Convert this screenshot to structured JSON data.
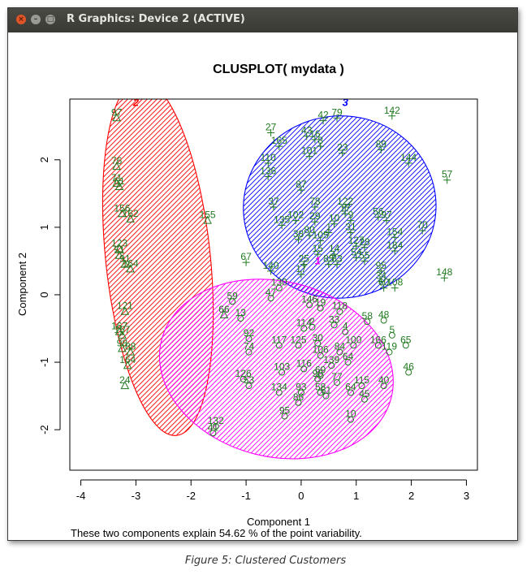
{
  "window": {
    "title": "R Graphics: Device 2 (ACTIVE)",
    "close_glyph": "×",
    "min_glyph": "–",
    "max_glyph": "□"
  },
  "caption": "Figure 5: Clustered Customers",
  "chart_data": {
    "type": "scatter",
    "title": "CLUSPLOT( mydata )",
    "xlabel": "Component 1",
    "ylabel": "Component 2",
    "subtitle": "These two components explain 54.62 % of the point variability.",
    "xlim": [
      -4.2,
      3.2
    ],
    "ylim": [
      -2.6,
      2.9
    ],
    "xticks": [
      -4,
      -3,
      -2,
      -1,
      0,
      1,
      2,
      3
    ],
    "yticks": [
      -2,
      -1,
      0,
      1,
      2
    ],
    "grid": false,
    "clusters": [
      {
        "label": "2",
        "color": "#ff0000",
        "marker": "triangle",
        "label_pos": [
          -3.0,
          2.8
        ],
        "ellipse": {
          "cx": -2.6,
          "cy": 0.55,
          "rx": 0.95,
          "ry": 2.65,
          "angle": -6
        },
        "points": [
          {
            "id": "97",
            "x": -3.35,
            "y": 2.62
          },
          {
            "id": "76",
            "x": -3.35,
            "y": 1.9
          },
          {
            "id": "71",
            "x": -3.35,
            "y": 1.65
          },
          {
            "id": "61",
            "x": -3.3,
            "y": 1.6
          },
          {
            "id": "156",
            "x": -3.25,
            "y": 1.2
          },
          {
            "id": "162",
            "x": -3.1,
            "y": 1.12
          },
          {
            "id": "123",
            "x": -3.3,
            "y": 0.68
          },
          {
            "id": "51",
            "x": -3.3,
            "y": 0.58
          },
          {
            "id": "91",
            "x": -3.2,
            "y": 0.45
          },
          {
            "id": "164",
            "x": -3.1,
            "y": 0.38
          },
          {
            "id": "121",
            "x": -3.2,
            "y": -0.25
          },
          {
            "id": "167",
            "x": -3.3,
            "y": -0.55
          },
          {
            "id": "157",
            "x": -3.25,
            "y": -0.6
          },
          {
            "id": "98",
            "x": -3.25,
            "y": -0.8
          },
          {
            "id": "88",
            "x": -3.1,
            "y": -0.85
          },
          {
            "id": "164",
            "x": -3.15,
            "y": -1.05
          },
          {
            "id": "24",
            "x": -3.2,
            "y": -1.35
          },
          {
            "id": "155",
            "x": -1.7,
            "y": 1.1
          },
          {
            "id": "66",
            "x": -1.4,
            "y": -0.3
          }
        ]
      },
      {
        "label": "3",
        "color": "#0000ff",
        "marker": "cross",
        "label_pos": [
          0.8,
          2.8
        ],
        "ellipse": {
          "cx": 0.7,
          "cy": 1.3,
          "rx": 1.75,
          "ry": 1.35,
          "angle": -6
        },
        "points": [
          {
            "id": "42",
            "x": 0.4,
            "y": 2.58
          },
          {
            "id": "79",
            "x": 0.65,
            "y": 2.62
          },
          {
            "id": "142",
            "x": 1.65,
            "y": 2.65
          },
          {
            "id": "27",
            "x": -0.55,
            "y": 2.4
          },
          {
            "id": "43",
            "x": 0.1,
            "y": 2.35
          },
          {
            "id": "16",
            "x": 0.25,
            "y": 2.3
          },
          {
            "id": "165",
            "x": -0.4,
            "y": 2.2
          },
          {
            "id": "8",
            "x": 0.35,
            "y": 2.2
          },
          {
            "id": "89",
            "x": 1.45,
            "y": 2.15
          },
          {
            "id": "23",
            "x": 0.75,
            "y": 2.1
          },
          {
            "id": "101",
            "x": 0.15,
            "y": 2.05
          },
          {
            "id": "144",
            "x": 1.95,
            "y": 1.95
          },
          {
            "id": "110",
            "x": -0.6,
            "y": 1.95
          },
          {
            "id": "136",
            "x": -0.6,
            "y": 1.75
          },
          {
            "id": "57",
            "x": 2.65,
            "y": 1.7
          },
          {
            "id": "87",
            "x": 0.0,
            "y": 1.55
          },
          {
            "id": "37",
            "x": -0.5,
            "y": 1.3
          },
          {
            "id": "78",
            "x": 0.25,
            "y": 1.3
          },
          {
            "id": "122",
            "x": 0.8,
            "y": 1.3
          },
          {
            "id": "17",
            "x": 0.8,
            "y": 1.2
          },
          {
            "id": "102",
            "x": -0.1,
            "y": 1.1
          },
          {
            "id": "29",
            "x": 0.25,
            "y": 1.08
          },
          {
            "id": "10",
            "x": 0.6,
            "y": 1.05
          },
          {
            "id": "9",
            "x": 0.9,
            "y": 1.1
          },
          {
            "id": "56",
            "x": 1.4,
            "y": 1.15
          },
          {
            "id": "97",
            "x": 1.55,
            "y": 1.1
          },
          {
            "id": "135",
            "x": -0.35,
            "y": 1.03
          },
          {
            "id": "70",
            "x": 2.2,
            "y": 0.95
          },
          {
            "id": "154",
            "x": 1.7,
            "y": 0.85
          },
          {
            "id": "80",
            "x": 0.15,
            "y": 0.88
          },
          {
            "id": "1",
            "x": 0.5,
            "y": 0.92
          },
          {
            "id": "31",
            "x": 0.9,
            "y": 0.92
          },
          {
            "id": "38",
            "x": -0.05,
            "y": 0.82
          },
          {
            "id": "105",
            "x": 0.35,
            "y": 0.8
          },
          {
            "id": "127",
            "x": 1.0,
            "y": 0.72
          },
          {
            "id": "28",
            "x": 1.15,
            "y": 0.7
          },
          {
            "id": "184",
            "x": 1.7,
            "y": 0.65
          },
          {
            "id": "15",
            "x": 0.3,
            "y": 0.6
          },
          {
            "id": "14",
            "x": 0.6,
            "y": 0.6
          },
          {
            "id": "54",
            "x": 1.0,
            "y": 0.55
          },
          {
            "id": "55",
            "x": 1.15,
            "y": 0.5
          },
          {
            "id": "67",
            "x": -1.0,
            "y": 0.48
          },
          {
            "id": "25",
            "x": 0.05,
            "y": 0.45
          },
          {
            "id": "85",
            "x": 0.5,
            "y": 0.45
          },
          {
            "id": "83",
            "x": 0.65,
            "y": 0.45
          },
          {
            "id": "140",
            "x": -0.55,
            "y": 0.35
          },
          {
            "id": "17",
            "x": 0.0,
            "y": 0.3
          },
          {
            "id": "95",
            "x": 1.45,
            "y": 0.35
          },
          {
            "id": "34",
            "x": 1.45,
            "y": 0.2
          },
          {
            "id": "148",
            "x": 2.6,
            "y": 0.25
          },
          {
            "id": "60",
            "x": 1.5,
            "y": 0.1
          },
          {
            "id": "108",
            "x": 1.7,
            "y": 0.1
          }
        ]
      },
      {
        "label": "1",
        "color": "#ff00ff",
        "marker": "circle",
        "label_pos": [
          0.3,
          0.45
        ],
        "ellipse": {
          "cx": -0.45,
          "cy": -1.1,
          "rx": 2.15,
          "ry": 1.3,
          "angle": 14
        },
        "points": [
          {
            "id": "59",
            "x": -1.25,
            "y": -0.1
          },
          {
            "id": "13",
            "x": -1.1,
            "y": -0.35
          },
          {
            "id": "47",
            "x": -0.55,
            "y": -0.05
          },
          {
            "id": "130",
            "x": -0.4,
            "y": 0.1
          },
          {
            "id": "146",
            "x": 0.15,
            "y": -0.15
          },
          {
            "id": "19",
            "x": 0.35,
            "y": -0.2
          },
          {
            "id": "118",
            "x": 0.7,
            "y": -0.25
          },
          {
            "id": "58",
            "x": 1.2,
            "y": -0.4
          },
          {
            "id": "48",
            "x": 1.5,
            "y": -0.38
          },
          {
            "id": "114",
            "x": 0.05,
            "y": -0.5
          },
          {
            "id": "2",
            "x": 0.2,
            "y": -0.48
          },
          {
            "id": "33",
            "x": 0.6,
            "y": -0.45
          },
          {
            "id": "4",
            "x": 0.8,
            "y": -0.55
          },
          {
            "id": "5",
            "x": 1.65,
            "y": -0.6
          },
          {
            "id": "92",
            "x": -0.95,
            "y": -0.65
          },
          {
            "id": "117",
            "x": -0.4,
            "y": -0.75
          },
          {
            "id": "125",
            "x": -0.05,
            "y": -0.75
          },
          {
            "id": "30",
            "x": 0.3,
            "y": -0.72
          },
          {
            "id": "106",
            "x": 0.35,
            "y": -0.9
          },
          {
            "id": "84",
            "x": 0.7,
            "y": -0.85
          },
          {
            "id": "100",
            "x": 0.95,
            "y": -0.75
          },
          {
            "id": "166",
            "x": 1.4,
            "y": -0.75
          },
          {
            "id": "65",
            "x": 1.9,
            "y": -0.75
          },
          {
            "id": "119",
            "x": 1.6,
            "y": -0.85
          },
          {
            "id": "74",
            "x": -0.95,
            "y": -0.85
          },
          {
            "id": "139",
            "x": 0.55,
            "y": -1.05
          },
          {
            "id": "64",
            "x": 0.85,
            "y": -1.0
          },
          {
            "id": "103",
            "x": -0.35,
            "y": -1.15
          },
          {
            "id": "116",
            "x": 0.05,
            "y": -1.1
          },
          {
            "id": "69",
            "x": 0.35,
            "y": -1.2
          },
          {
            "id": "96",
            "x": 0.3,
            "y": -1.25
          },
          {
            "id": "126",
            "x": -1.05,
            "y": -1.25
          },
          {
            "id": "53",
            "x": -0.95,
            "y": -1.35
          },
          {
            "id": "77",
            "x": 0.65,
            "y": -1.3
          },
          {
            "id": "115",
            "x": 1.1,
            "y": -1.35
          },
          {
            "id": "40",
            "x": 1.5,
            "y": -1.35
          },
          {
            "id": "46",
            "x": 1.95,
            "y": -1.15
          },
          {
            "id": "134",
            "x": -0.4,
            "y": -1.45
          },
          {
            "id": "93",
            "x": 0.0,
            "y": -1.45
          },
          {
            "id": "58",
            "x": 0.35,
            "y": -1.45
          },
          {
            "id": "61",
            "x": 0.45,
            "y": -1.5
          },
          {
            "id": "64",
            "x": 0.9,
            "y": -1.45
          },
          {
            "id": "45",
            "x": 1.15,
            "y": -1.55
          },
          {
            "id": "86",
            "x": -0.05,
            "y": -1.6
          },
          {
            "id": "95",
            "x": -0.3,
            "y": -1.8
          },
          {
            "id": "10",
            "x": 0.9,
            "y": -1.85
          },
          {
            "id": "132",
            "x": -1.55,
            "y": -1.95
          },
          {
            "id": "41",
            "x": -1.6,
            "y": -2.05
          }
        ]
      }
    ]
  }
}
